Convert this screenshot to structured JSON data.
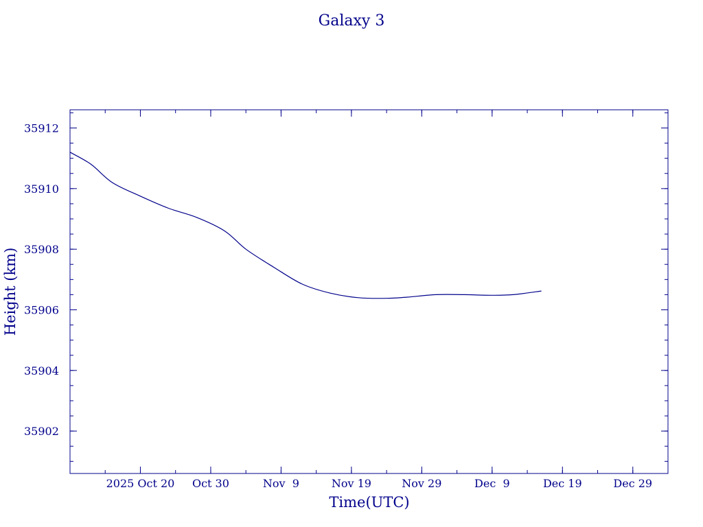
{
  "chart_data": {
    "type": "line",
    "title": "Galaxy 3",
    "xlabel": "Time(UTC)",
    "ylabel": "Height (km)",
    "color": "#00008b",
    "grid": false,
    "x_ticks": [
      "2025 Oct 20",
      "Oct 30",
      "Nov  9",
      "Nov 19",
      "Nov 29",
      "Dec  9",
      "Dec 19",
      "Dec 29"
    ],
    "x_tick_dates": [
      "2025-10-20",
      "2025-10-30",
      "2025-11-09",
      "2025-11-19",
      "2025-11-29",
      "2025-12-09",
      "2025-12-19",
      "2025-12-29"
    ],
    "xlim": [
      "2025-10-10",
      "2026-01-03"
    ],
    "y_ticks": [
      35902,
      35904,
      35906,
      35908,
      35910,
      35912
    ],
    "ylim": [
      35900.6,
      35912.6
    ],
    "series": [
      {
        "x": [
          "2025-10-10",
          "2025-10-13",
          "2025-10-16",
          "2025-10-20",
          "2025-10-24",
          "2025-10-28",
          "2025-11-01",
          "2025-11-04",
          "2025-11-08",
          "2025-11-12",
          "2025-11-16",
          "2025-11-20",
          "2025-11-24",
          "2025-11-27",
          "2025-12-01",
          "2025-12-05",
          "2025-12-09",
          "2025-12-12",
          "2025-12-16"
        ],
        "y": [
          35911.2,
          35910.8,
          35910.2,
          35909.75,
          35909.35,
          35909.05,
          35908.6,
          35908.0,
          35907.4,
          35906.85,
          35906.55,
          35906.4,
          35906.38,
          35906.42,
          35906.5,
          35906.5,
          35906.48,
          35906.5,
          35906.62
        ]
      }
    ]
  }
}
